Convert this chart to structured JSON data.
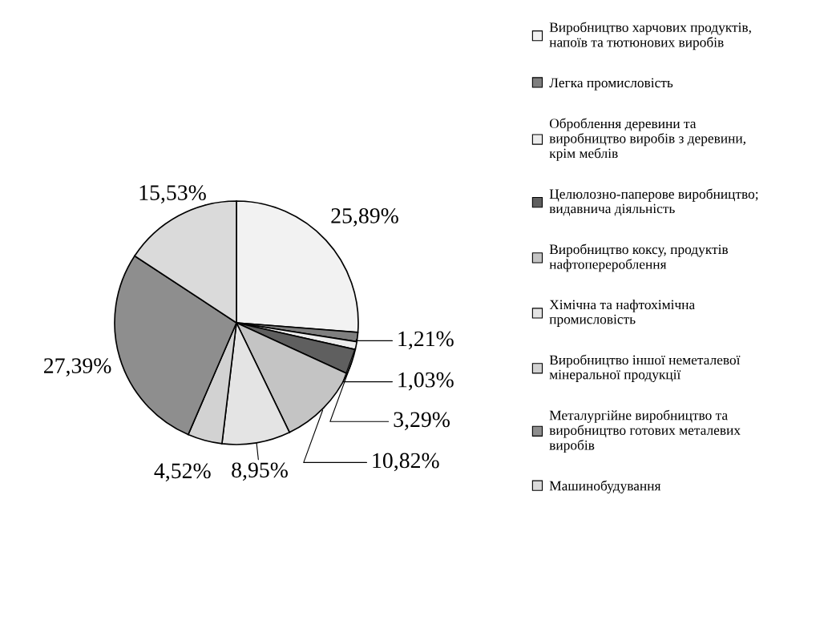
{
  "chart_data": {
    "type": "pie",
    "categories": [
      "Виробництво харчових продуктів,\nнапоїв та тютюнових виробів",
      "Легка промисловість",
      "Оброблення деревини та\nвиробництво виробів з деревини,\nкрім меблів",
      "Целюлозно-паперове виробництво;\nвидавнича діяльність",
      "Виробництво коксу, продуктів\nнафтоперероблення",
      "Хімічна та нафтохімічна\nпромисловість",
      "Виробництво іншої неметалевої\nмінеральної продукції",
      "Металургійне виробництво та\nвиробництво готових металевих\nвиробів",
      "Машинобудування"
    ],
    "values": [
      25.89,
      1.21,
      1.03,
      3.29,
      10.82,
      8.95,
      4.52,
      27.39,
      15.53
    ],
    "value_labels": [
      "25,89%",
      "1,21%",
      "1,03%",
      "3,29%",
      "10,82%",
      "8,95%",
      "4,52%",
      "27,39%",
      "15,53%"
    ],
    "colors": [
      "#f2f2f2",
      "#7f7f7f",
      "#ececec",
      "#5f5f5f",
      "#c4c4c4",
      "#e4e4e4",
      "#d2d2d2",
      "#8e8e8e",
      "#dadada"
    ],
    "legend": "right"
  }
}
